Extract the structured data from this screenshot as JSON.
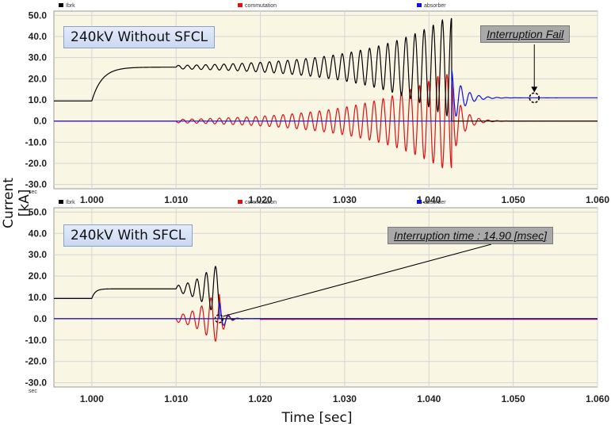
{
  "figure": {
    "ylabel": "Current [kA]",
    "xlabel": "Time [sec]",
    "x_unit_tag": "sec",
    "colors": {
      "Ibrk": "#000000",
      "commutation": "#e01010",
      "absorber": "#1010e0",
      "plot_bg": "#faf6e4",
      "grid": "#d4d4d4"
    }
  },
  "chart_data": [
    {
      "type": "line",
      "title_box": "240kV Without SFCL",
      "annotation": "Interruption Fail",
      "xlim": [
        0.9955,
        1.06
      ],
      "ylim": [
        -32,
        52
      ],
      "x_ticks": [
        "1.000",
        "1.010",
        "1.020",
        "1.030",
        "1.040",
        "1.050",
        "1.060"
      ],
      "y_ticks": [
        "50.0",
        "40.0",
        "30.0",
        "20.0",
        "10.0",
        "0.0",
        "-10.0",
        "-20.0",
        "-30.0"
      ],
      "legend": [
        "Ibrk",
        "commutation",
        "absorber"
      ],
      "grid": true,
      "legend_position": "top",
      "series": [
        {
          "name": "Ibrk",
          "color": "#000000",
          "description_points": [
            [
              0.9955,
              9.5
            ],
            [
              1.0,
              9.5
            ],
            [
              1.003,
              22.5
            ],
            [
              1.006,
              25.5
            ],
            [
              1.01,
              25.5
            ],
            [
              1.0425,
              47.5
            ],
            [
              1.0433,
              0.0
            ],
            [
              1.06,
              0.0
            ]
          ]
        },
        {
          "name": "commutation",
          "color": "#e01010",
          "description_points": [
            [
              0.9955,
              0.0
            ],
            [
              1.01,
              0.0
            ],
            [
              1.0425,
              -22.0
            ],
            [
              1.0425,
              20.0
            ],
            [
              1.047,
              0.0
            ],
            [
              1.06,
              0.0
            ]
          ]
        },
        {
          "name": "absorber",
          "color": "#1010e0",
          "description_points": [
            [
              0.9955,
              0.0
            ],
            [
              1.0433,
              0.0
            ],
            [
              1.044,
              24.0
            ],
            [
              1.048,
              11.0
            ],
            [
              1.06,
              11.0
            ]
          ]
        }
      ]
    },
    {
      "type": "line",
      "title_box": "240kV With SFCL",
      "annotation": "Interruption time : 14.90 [msec]",
      "xlim": [
        0.9955,
        1.06
      ],
      "ylim": [
        -32,
        52
      ],
      "x_ticks": [
        "1.000",
        "1.010",
        "1.020",
        "1.030",
        "1.040",
        "1.050",
        "1.060"
      ],
      "y_ticks": [
        "50.0",
        "40.0",
        "30.0",
        "20.0",
        "10.0",
        "0.0",
        "-10.0",
        "-20.0",
        "-30.0"
      ],
      "legend": [
        "Ibrk",
        "commutation",
        "absorber"
      ],
      "grid": true,
      "legend_position": "top",
      "series": [
        {
          "name": "Ibrk",
          "color": "#000000",
          "description_points": [
            [
              0.9955,
              9.5
            ],
            [
              1.0,
              9.5
            ],
            [
              1.0015,
              14.0
            ],
            [
              1.01,
              14.0
            ],
            [
              1.0148,
              24.5
            ],
            [
              1.0151,
              0.0
            ],
            [
              1.06,
              0.0
            ]
          ]
        },
        {
          "name": "commutation",
          "color": "#e01010",
          "description_points": [
            [
              0.9955,
              0.0
            ],
            [
              1.01,
              0.0
            ],
            [
              1.0148,
              -10.5
            ],
            [
              1.0148,
              14.0
            ],
            [
              1.017,
              0.0
            ],
            [
              1.06,
              -0.3
            ]
          ]
        },
        {
          "name": "absorber",
          "color": "#1010e0",
          "description_points": [
            [
              0.9955,
              0.0
            ],
            [
              1.0151,
              0.0
            ],
            [
              1.0158,
              8.0
            ],
            [
              1.0175,
              0.0
            ],
            [
              1.06,
              0.0
            ]
          ]
        }
      ]
    }
  ]
}
